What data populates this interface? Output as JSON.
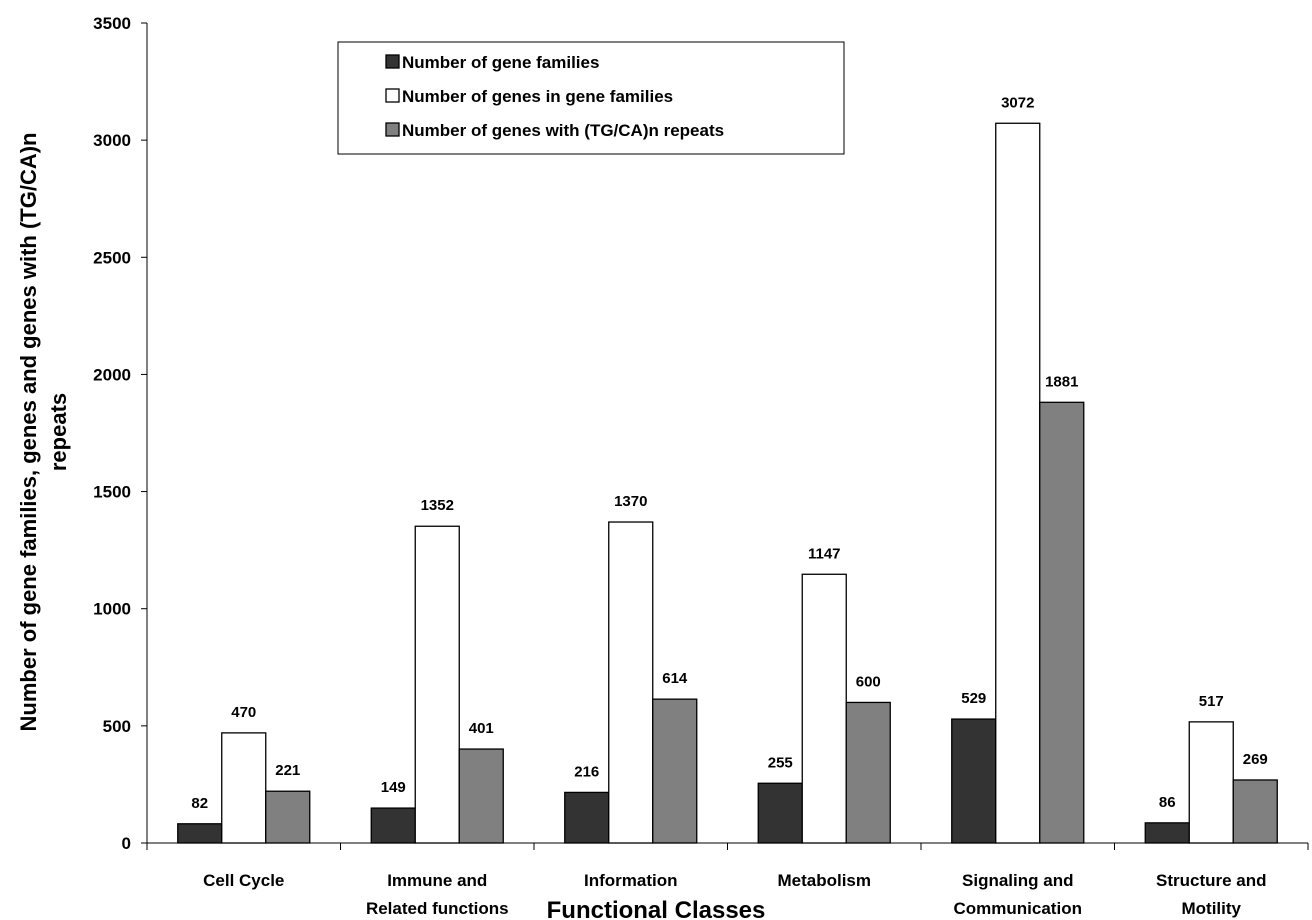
{
  "chart_data": {
    "type": "bar",
    "title": "",
    "xlabel": "Functional Classes",
    "ylabel_lines": [
      "Number of gene families, genes and genes with (TG/CA)n",
      "repeats"
    ],
    "ylim": [
      0,
      3500
    ],
    "yticks": [
      0,
      500,
      1000,
      1500,
      2000,
      2500,
      3000,
      3500
    ],
    "grid": false,
    "legend_position": "top-left",
    "categories": [
      [
        "Cell Cycle"
      ],
      [
        "Immune and",
        "Related functions"
      ],
      [
        "Information"
      ],
      [
        "Metabolism"
      ],
      [
        "Signaling and",
        "Communication"
      ],
      [
        "Structure and",
        "Motility"
      ]
    ],
    "series": [
      {
        "name": "Number of gene families",
        "color": "#333333",
        "values": [
          82,
          149,
          216,
          255,
          529,
          86
        ]
      },
      {
        "name": "Number of genes in gene families",
        "color": "#ffffff",
        "values": [
          470,
          1352,
          1370,
          1147,
          3072,
          517
        ]
      },
      {
        "name": "Number of genes with (TG/CA)n repeats",
        "color": "#808080",
        "values": [
          221,
          401,
          614,
          600,
          1881,
          269
        ]
      }
    ]
  }
}
